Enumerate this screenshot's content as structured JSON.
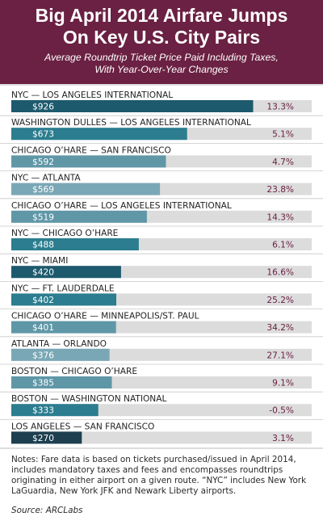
{
  "header": {
    "title_line1": "Big April 2014 Airfare Jumps",
    "title_line2": "On Key U.S. City Pairs",
    "subtitle_line1": "Average Roundtrip Ticket Price Paid Including Taxes,",
    "subtitle_line2": "With Year-Over-Year Changes"
  },
  "chart_data": {
    "type": "bar",
    "title": "Big April 2014 Airfare Jumps On Key U.S. City Pairs",
    "subtitle": "Average Roundtrip Ticket Price Paid Including Taxes, With Year-Over-Year Changes",
    "xlim": [
      0,
      1150
    ],
    "categories": [
      "NYC — LOS ANGELES INTERNATIONAL",
      "WASHINGTON DULLES — LOS ANGELES INTERNATIONAL",
      "CHICAGO O’HARE — SAN FRANCISCO",
      "NYC — ATLANTA",
      "CHICAGO O’HARE — LOS ANGELES INTERNATIONAL",
      "NYC — CHICAGO O’HARE",
      "NYC — MIAMI",
      "NYC — FT. LAUDERDALE",
      "CHICAGO O’HARE — MINNEAPOLIS/ST. PAUL",
      "ATLANTA — ORLANDO",
      "BOSTON — CHICAGO O’HARE",
      "BOSTON — WASHINGTON NATIONAL",
      "LOS ANGELES — SAN FRANCISCO"
    ],
    "values": [
      926,
      673,
      592,
      569,
      519,
      488,
      420,
      402,
      401,
      376,
      385,
      333,
      270
    ],
    "value_labels": [
      "$926",
      "$673",
      "$592",
      "$569",
      "$519",
      "$488",
      "$420",
      "$402",
      "$401",
      "$376",
      "$385",
      "$333",
      "$270"
    ],
    "changes": [
      "13.3%",
      "5.1%",
      "4.7%",
      "23.8%",
      "14.3%",
      "6.1%",
      "16.6%",
      "25.2%",
      "34.2%",
      "27.1%",
      "9.1%",
      "-0.5%",
      "3.1%"
    ],
    "bar_colors": [
      "#1d5a6e",
      "#2b7d8f",
      "#5f97a7",
      "#7aa7b5",
      "#5f97a7",
      "#2b7d8f",
      "#1d5a6e",
      "#2b7d8f",
      "#5f97a7",
      "#7aa7b5",
      "#5f97a7",
      "#2b7d8f",
      "#1d3f4f"
    ],
    "track_color": "#dcdcdc"
  },
  "notes": {
    "text": "Notes: Fare data is based on tickets purchased/issued in April 2014, includes mandatory taxes and fees and encompasses roundtrips originating in either airport on a given route. “NYC” includes New York LaGuardia, New York JFK and Newark Liberty airports.",
    "source": "Source: ARCLabs"
  }
}
